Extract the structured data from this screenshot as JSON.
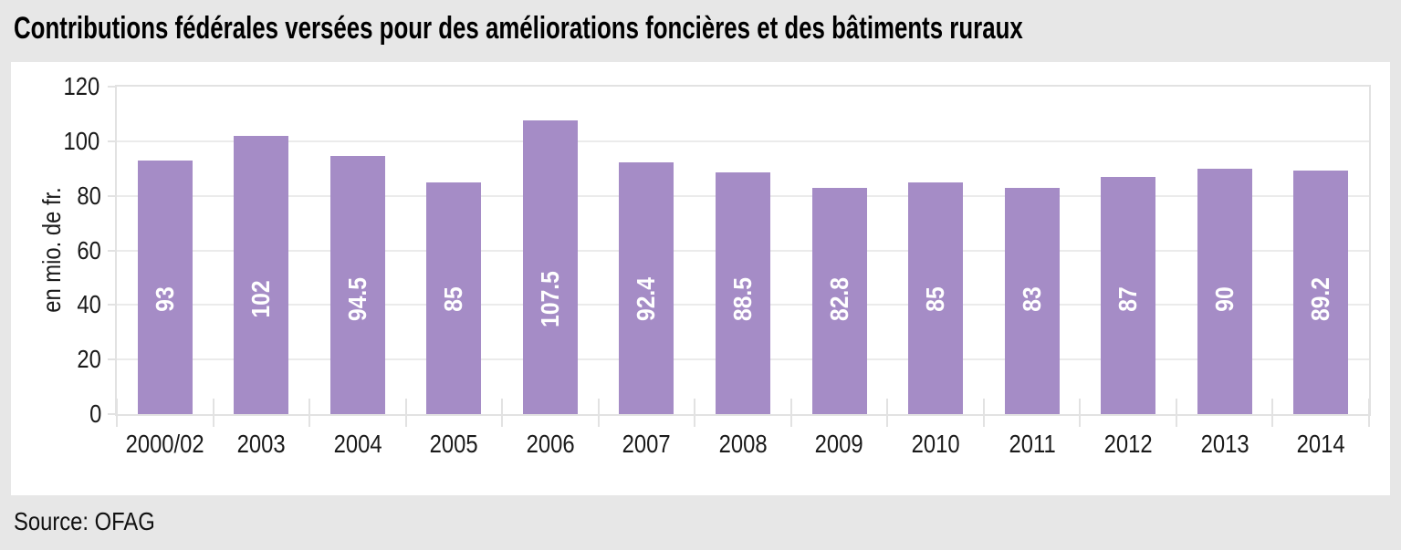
{
  "title": "Contributions fédérales versées pour des améliorations foncières et des bâtiments ruraux",
  "source": "Source: OFAG",
  "chart_data": {
    "type": "bar",
    "categories": [
      "2000/02",
      "2003",
      "2004",
      "2005",
      "2006",
      "2007",
      "2008",
      "2009",
      "2010",
      "2011",
      "2012",
      "2013",
      "2014"
    ],
    "values": [
      93,
      102,
      94.5,
      85,
      107.5,
      92.4,
      88.5,
      82.8,
      85,
      83,
      87,
      90,
      89.2
    ],
    "value_labels": [
      "93",
      "102",
      "94.5",
      "85",
      "107.5",
      "92.4",
      "88.5",
      "82.8",
      "85",
      "83",
      "87",
      "90",
      "89.2"
    ],
    "title": "Contributions fédérales versées pour des améliorations foncières et des bâtiments ruraux",
    "xlabel": "",
    "ylabel": "en mio. de fr.",
    "ylim": [
      0,
      120
    ],
    "yticks": [
      0,
      20,
      40,
      60,
      80,
      100,
      120
    ],
    "grid": true,
    "legend_position": "none",
    "colors": {
      "bar": "#a58cc6",
      "bar_label": "#ffffff",
      "grid": "#ebebeb",
      "axis": "#e2e2e2",
      "panel_background": "#ffffff",
      "page_background": "#e7e7e7",
      "text": "#1a1a1a"
    }
  }
}
